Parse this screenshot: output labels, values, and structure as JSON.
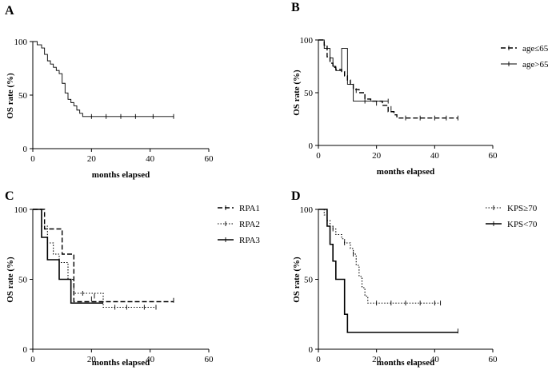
{
  "chart_data": [
    {
      "panel": "A",
      "type": "line",
      "subtype": "kaplan-meier",
      "xlabel": "months elapsed",
      "ylabel": "OS rate (%)",
      "xlim": [
        0,
        60
      ],
      "ylim": [
        0,
        100
      ],
      "xticks": [
        0,
        20,
        40,
        60
      ],
      "yticks": [
        0,
        50,
        100
      ],
      "legend": null,
      "series": [
        {
          "style": "solid-thin",
          "points": [
            [
              0,
              100
            ],
            [
              1.5,
              97
            ],
            [
              3,
              94
            ],
            [
              4,
              88
            ],
            [
              5,
              82
            ],
            [
              6,
              79
            ],
            [
              7,
              76
            ],
            [
              8,
              73
            ],
            [
              9,
              70
            ],
            [
              10,
              61
            ],
            [
              11,
              52
            ],
            [
              12,
              46
            ],
            [
              13,
              43
            ],
            [
              14,
              40
            ],
            [
              15,
              36
            ],
            [
              16,
              33
            ],
            [
              17,
              30
            ],
            [
              48,
              30
            ]
          ],
          "censors": [
            [
              20,
              30
            ],
            [
              25,
              30
            ],
            [
              30,
              30
            ],
            [
              35,
              30
            ],
            [
              41,
              30
            ],
            [
              48,
              30
            ]
          ]
        }
      ]
    },
    {
      "panel": "B",
      "type": "line",
      "subtype": "kaplan-meier",
      "xlabel": "months elapsed",
      "ylabel": "OS rate (%)",
      "xlim": [
        0,
        60
      ],
      "ylim": [
        0,
        100
      ],
      "xticks": [
        0,
        20,
        40,
        60
      ],
      "yticks": [
        0,
        50,
        100
      ],
      "legend": "right",
      "series": [
        {
          "name": "age≤65",
          "style": "dashed",
          "points": [
            [
              0,
              100
            ],
            [
              2,
              95
            ],
            [
              3,
              84
            ],
            [
              4,
              78
            ],
            [
              5,
              74
            ],
            [
              6,
              72
            ],
            [
              8,
              70
            ],
            [
              9,
              66
            ],
            [
              10,
              62
            ],
            [
              11,
              58
            ],
            [
              12,
              53
            ],
            [
              14,
              50
            ],
            [
              16,
              44
            ],
            [
              18,
              42
            ],
            [
              22,
              38
            ],
            [
              24,
              32
            ],
            [
              26,
              29
            ],
            [
              27,
              26
            ],
            [
              48,
              26
            ]
          ],
          "censors": [
            [
              10,
              64
            ],
            [
              13,
              52
            ],
            [
              20,
              40
            ],
            [
              25,
              35
            ],
            [
              30,
              26
            ],
            [
              35,
              26
            ],
            [
              40,
              26
            ],
            [
              44,
              26
            ],
            [
              48,
              26
            ]
          ]
        },
        {
          "name": "age>65",
          "style": "solid-thin",
          "points": [
            [
              0,
              100
            ],
            [
              2,
              92
            ],
            [
              4,
              83
            ],
            [
              5,
              75
            ],
            [
              6,
              71
            ],
            [
              7,
              71
            ],
            [
              8,
              92
            ],
            [
              10,
              58
            ],
            [
              12,
              42
            ],
            [
              18,
              42
            ],
            [
              24,
              42
            ]
          ],
          "censors": [
            [
              16,
              42
            ],
            [
              24,
              42
            ]
          ]
        }
      ]
    },
    {
      "panel": "C",
      "type": "line",
      "subtype": "kaplan-meier",
      "xlabel": "months elapsed",
      "ylabel": "OS rate (%)",
      "xlim": [
        0,
        60
      ],
      "ylim": [
        0,
        100
      ],
      "xticks": [
        0,
        20,
        40,
        60
      ],
      "yticks": [
        0,
        50,
        100
      ],
      "legend": "right",
      "series": [
        {
          "name": "RPA1",
          "style": "dashed",
          "points": [
            [
              0,
              100
            ],
            [
              4,
              86
            ],
            [
              10,
              68
            ],
            [
              14,
              34
            ],
            [
              48,
              34
            ]
          ],
          "censors": [
            [
              20,
              36
            ],
            [
              48,
              35
            ]
          ]
        },
        {
          "name": "RPA2",
          "style": "dotted",
          "points": [
            [
              0,
              100
            ],
            [
              3,
              88
            ],
            [
              5,
              76
            ],
            [
              7,
              68
            ],
            [
              9,
              62
            ],
            [
              12,
              50
            ],
            [
              14,
              40
            ],
            [
              24,
              30
            ],
            [
              42,
              30
            ]
          ],
          "censors": [
            [
              17,
              40
            ],
            [
              21,
              38
            ],
            [
              28,
              30
            ],
            [
              32,
              30
            ],
            [
              38,
              30
            ],
            [
              42,
              30
            ]
          ]
        },
        {
          "name": "RPA3",
          "style": "solid-thick",
          "points": [
            [
              0,
              100
            ],
            [
              3,
              80
            ],
            [
              5,
              64
            ],
            [
              8,
              64
            ],
            [
              9,
              50
            ],
            [
              12,
              50
            ],
            [
              13,
              33
            ],
            [
              24,
              33
            ]
          ],
          "censors": []
        }
      ]
    },
    {
      "panel": "D",
      "type": "line",
      "subtype": "kaplan-meier",
      "xlabel": "months elapsed",
      "ylabel": "OS rate (%)",
      "xlim": [
        0,
        60
      ],
      "ylim": [
        0,
        100
      ],
      "xticks": [
        0,
        20,
        40,
        60
      ],
      "yticks": [
        0,
        50,
        100
      ],
      "legend": "right",
      "series": [
        {
          "name": "KPS≥70",
          "style": "dotted",
          "points": [
            [
              0,
              100
            ],
            [
              2,
              96
            ],
            [
              3,
              92
            ],
            [
              4,
              88
            ],
            [
              5,
              86
            ],
            [
              6,
              82
            ],
            [
              8,
              79
            ],
            [
              9,
              76
            ],
            [
              11,
              72
            ],
            [
              12,
              68
            ],
            [
              13,
              60
            ],
            [
              14,
              52
            ],
            [
              15,
              44
            ],
            [
              16,
              38
            ],
            [
              17,
              33
            ],
            [
              42,
              33
            ]
          ],
          "censors": [
            [
              5,
              86
            ],
            [
              9,
              76
            ],
            [
              12,
              68
            ],
            [
              20,
              33
            ],
            [
              25,
              33
            ],
            [
              30,
              33
            ],
            [
              35,
              33
            ],
            [
              40,
              33
            ],
            [
              42,
              33
            ]
          ]
        },
        {
          "name": "KPS<70",
          "style": "solid-thick",
          "points": [
            [
              0,
              100
            ],
            [
              3,
              88
            ],
            [
              4,
              75
            ],
            [
              5,
              63
            ],
            [
              6,
              50
            ],
            [
              9,
              25
            ],
            [
              10,
              12
            ],
            [
              48,
              12
            ]
          ],
          "censors": [
            [
              48,
              13
            ]
          ]
        }
      ]
    }
  ]
}
